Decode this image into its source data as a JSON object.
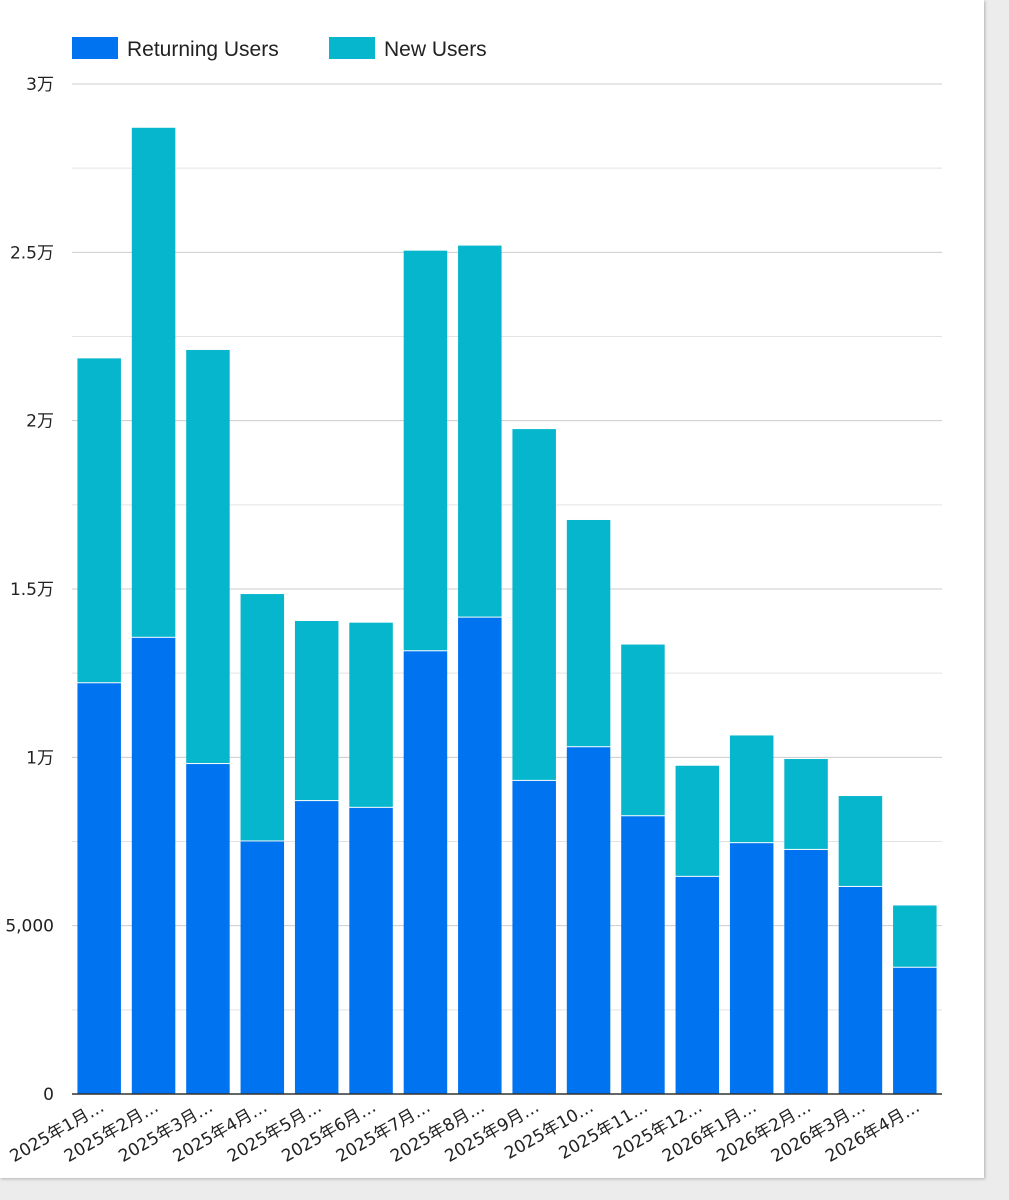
{
  "chart_data": {
    "type": "bar",
    "stacked": true,
    "categories": [
      "2025年1月…",
      "2025年2月…",
      "2025年3月…",
      "2025年4月…",
      "2025年5月…",
      "2025年6月…",
      "2025年7月…",
      "2025年8月…",
      "2025年9月…",
      "2025年10…",
      "2025年11…",
      "2025年12…",
      "2026年1月…",
      "2026年2月…",
      "2026年3月…",
      "2026年4月…"
    ],
    "series": [
      {
        "name": "Returning Users",
        "color": "#0073f0",
        "values": [
          12200,
          13550,
          9800,
          7500,
          8700,
          8500,
          13150,
          14150,
          9300,
          10300,
          8250,
          6450,
          7450,
          7250,
          6150,
          3750
        ]
      },
      {
        "name": "New Users",
        "color": "#06b6cc",
        "values": [
          9650,
          15150,
          12300,
          7350,
          5350,
          5500,
          11900,
          11050,
          10450,
          6750,
          5100,
          3300,
          3200,
          2700,
          2700,
          1850
        ]
      }
    ],
    "ylim": [
      0,
      30000
    ],
    "yticks": [
      {
        "value": 0,
        "label": "0"
      },
      {
        "value": 5000,
        "label": "5,000"
      },
      {
        "value": 10000,
        "label": "1万"
      },
      {
        "value": 15000,
        "label": "1.5万"
      },
      {
        "value": 20000,
        "label": "2万"
      },
      {
        "value": 25000,
        "label": "2.5万"
      },
      {
        "value": 30000,
        "label": "3万"
      }
    ],
    "minor_gridlines": [
      2500,
      7500,
      12500,
      17500,
      22500,
      27500
    ],
    "grid": true,
    "legend_position": "top-left",
    "title": "",
    "xlabel": "",
    "ylabel": ""
  }
}
